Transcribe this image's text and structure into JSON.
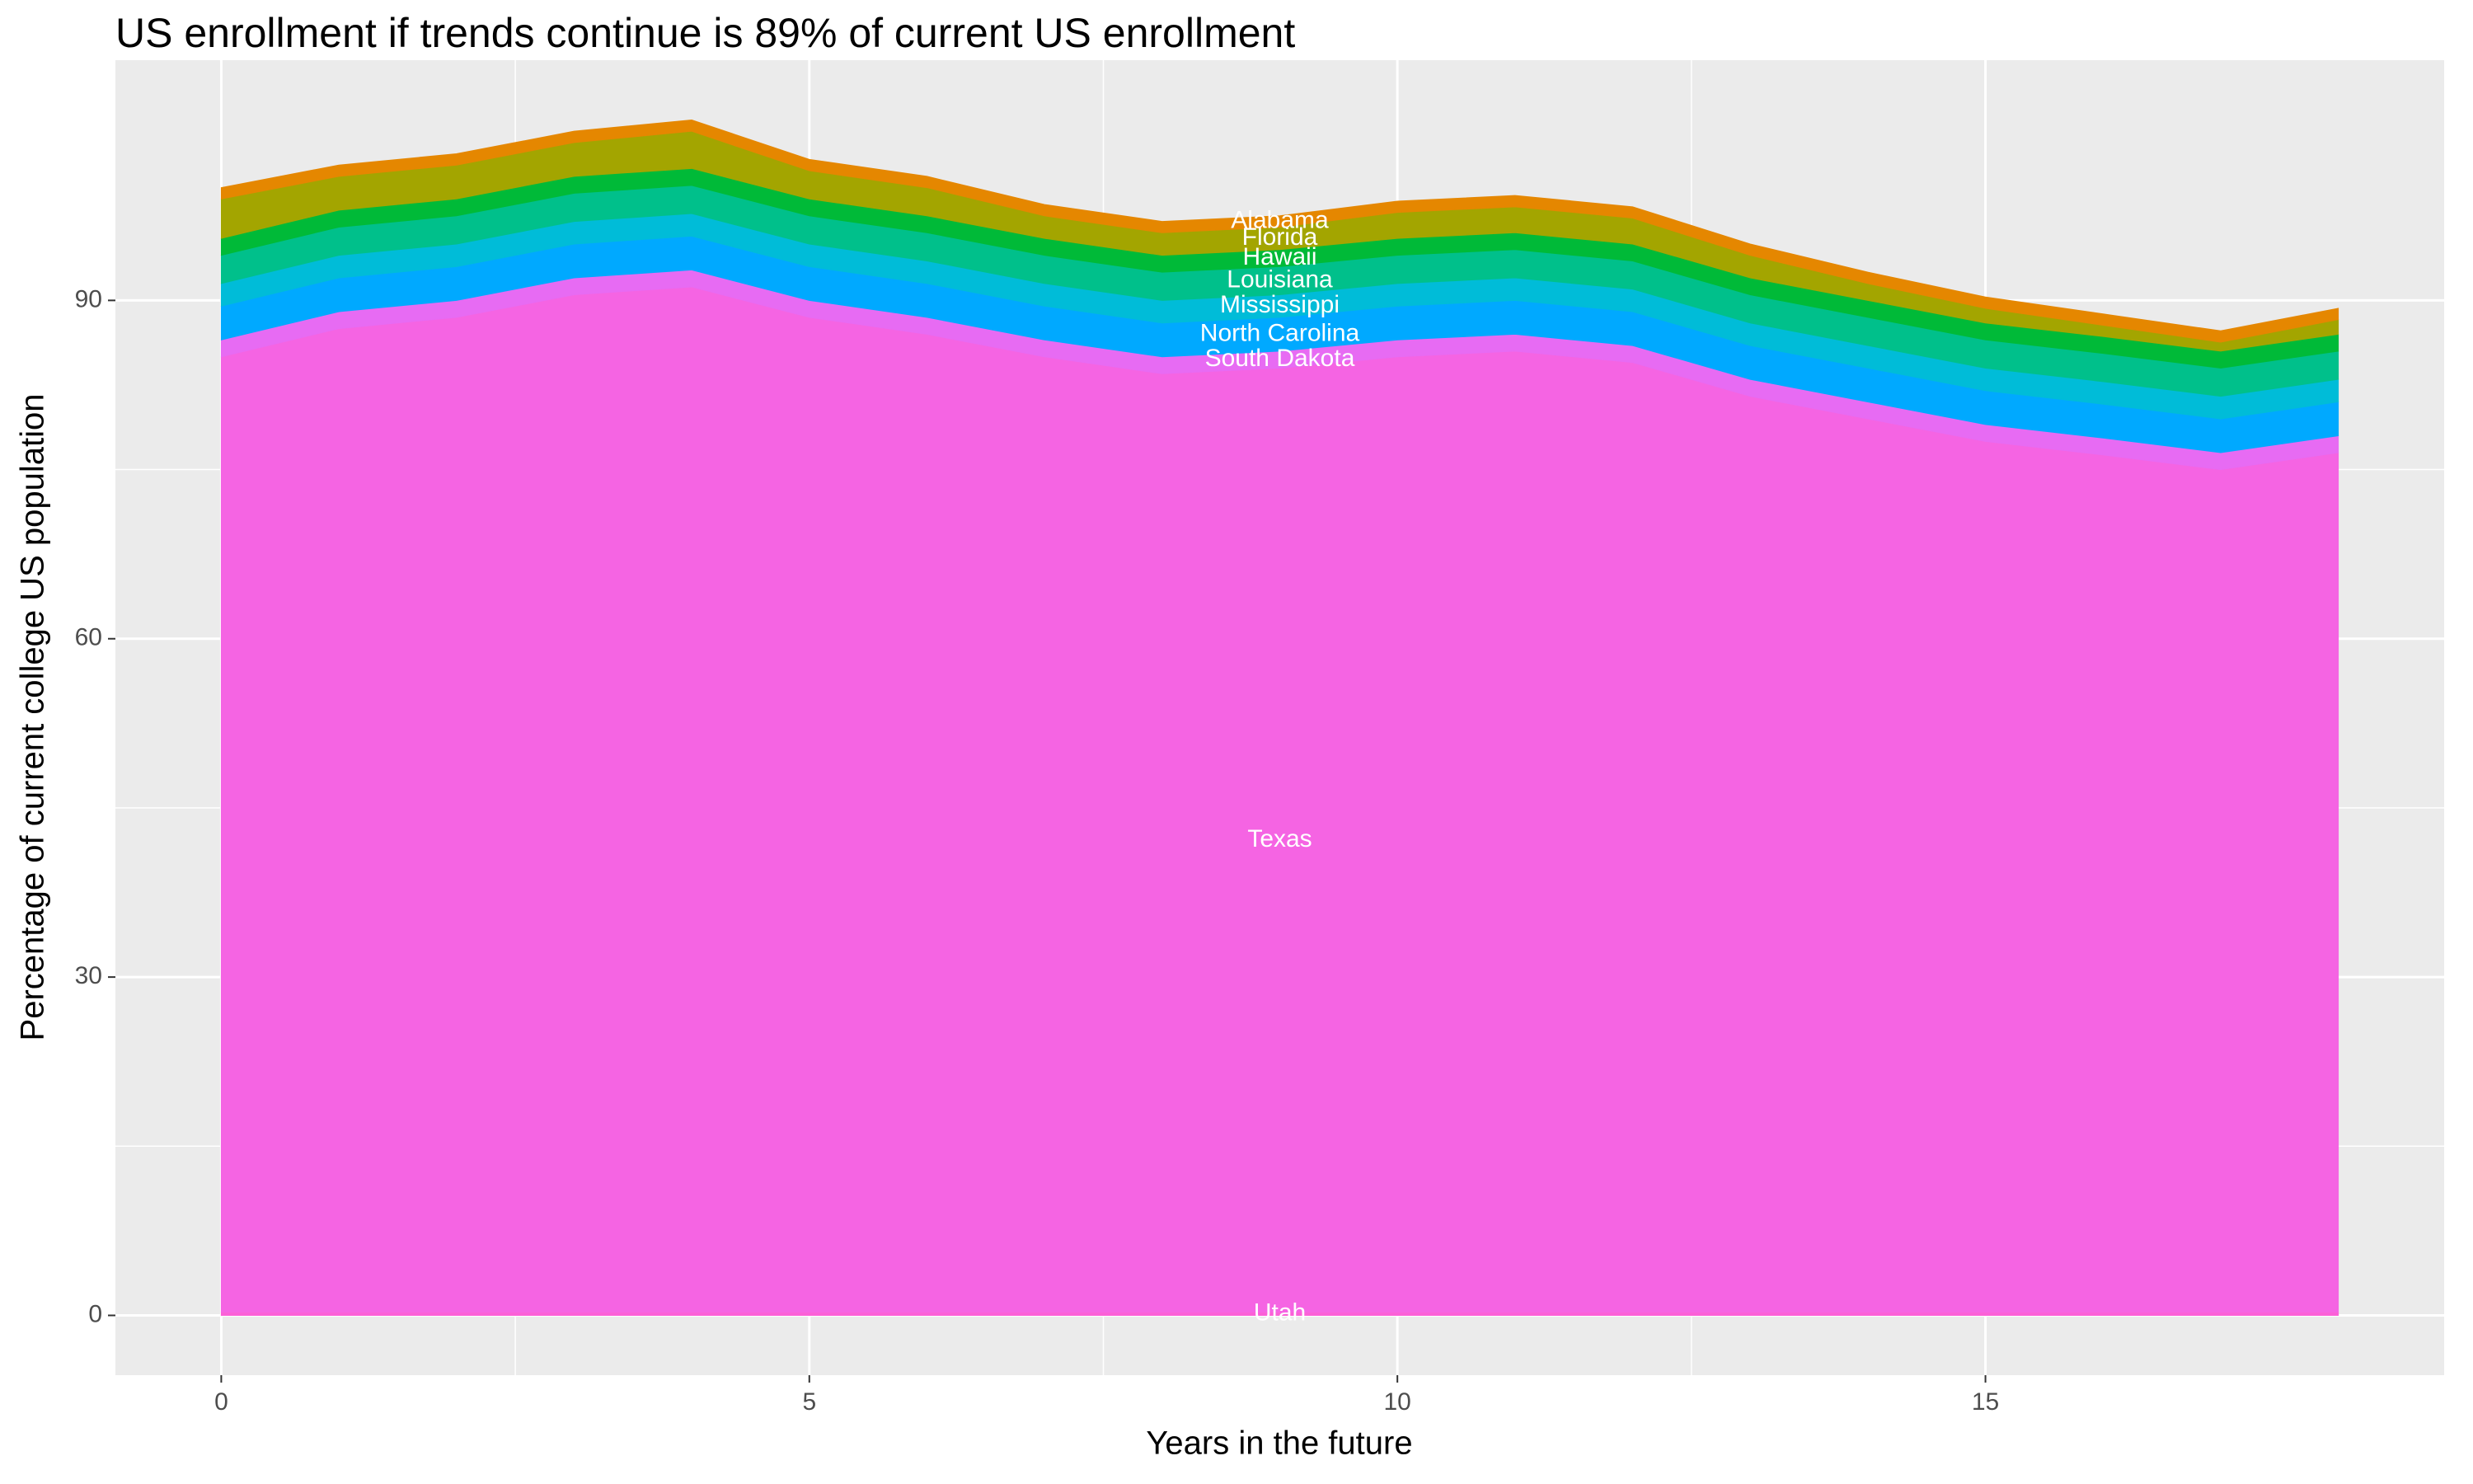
{
  "chart_data": {
    "type": "stacked-area",
    "title": "US enrollment if trends continue is 89% of current US enrollment",
    "x_label": "Years in the future",
    "y_label": "Percentage of current college US population",
    "x": [
      0,
      1,
      2,
      3,
      4,
      5,
      6,
      7,
      8,
      9,
      10,
      11,
      12,
      13,
      14,
      15,
      16,
      17,
      18
    ],
    "xlim": [
      -0.9,
      18.9
    ],
    "xticks": [
      0,
      5,
      10,
      15
    ],
    "ylim": [
      -5.3,
      111.3
    ],
    "yticks": [
      0,
      30,
      60,
      90
    ],
    "grid": true,
    "series": [
      {
        "name": "Utah",
        "color": "#fb61d7",
        "values": [
          0.3,
          0.3,
          0.3,
          0.3,
          0.3,
          0.3,
          0.3,
          0.3,
          0.3,
          0.3,
          0.3,
          0.3,
          0.3,
          0.3,
          0.3,
          0.3,
          0.3,
          0.3,
          0.3
        ]
      },
      {
        "name": "Texas",
        "color": "#f564e3",
        "values": [
          84.7,
          87.2,
          88.2,
          90.2,
          90.9,
          88.2,
          86.7,
          84.7,
          83.2,
          83.7,
          84.7,
          85.2,
          84.2,
          81.2,
          79.2,
          77.2,
          76,
          74.7,
          76.2
        ]
      },
      {
        "name": "South Dakota",
        "color": "#e76bf3",
        "values": [
          1.5,
          1.5,
          1.5,
          1.5,
          1.5,
          1.5,
          1.5,
          1.5,
          1.5,
          1.5,
          1.5,
          1.5,
          1.5,
          1.5,
          1.5,
          1.5,
          1.5,
          1.5,
          1.5
        ]
      },
      {
        "name": "North Carolina",
        "color": "#00a9ff",
        "values": [
          3,
          3,
          3,
          3,
          3,
          3,
          3,
          3,
          3,
          3,
          3,
          3,
          3,
          3,
          3,
          3,
          3,
          3,
          3
        ]
      },
      {
        "name": "Mississippi",
        "color": "#00bcd8",
        "values": [
          2,
          2,
          2,
          2,
          2,
          2,
          2,
          2,
          2,
          2,
          2,
          2,
          2,
          2,
          2,
          2,
          2,
          2,
          2
        ]
      },
      {
        "name": "Louisiana",
        "color": "#00c08b",
        "values": [
          2.5,
          2.5,
          2.5,
          2.5,
          2.5,
          2.5,
          2.5,
          2.5,
          2.5,
          2.5,
          2.5,
          2.5,
          2.5,
          2.5,
          2.5,
          2.5,
          2.5,
          2.5,
          2.5
        ]
      },
      {
        "name": "Hawaii",
        "color": "#00ba38",
        "values": [
          1.5,
          1.5,
          1.5,
          1.5,
          1.5,
          1.5,
          1.5,
          1.5,
          1.5,
          1.5,
          1.5,
          1.5,
          1.5,
          1.5,
          1.5,
          1.5,
          1.5,
          1.5,
          1.5
        ]
      },
      {
        "name": "Florida",
        "color": "#a3a500",
        "values": [
          3.5,
          3,
          3,
          3,
          3.3,
          2.5,
          2.5,
          2,
          2,
          2,
          2.3,
          2.3,
          2.3,
          2,
          1.5,
          1.3,
          1,
          0.8,
          1.3
        ]
      },
      {
        "name": "Alabama",
        "color": "#e58700",
        "values": [
          1,
          1,
          1,
          1,
          1,
          1,
          1,
          1,
          1,
          1,
          1,
          1,
          1,
          1,
          1,
          1,
          1,
          1,
          1
        ]
      }
    ]
  }
}
